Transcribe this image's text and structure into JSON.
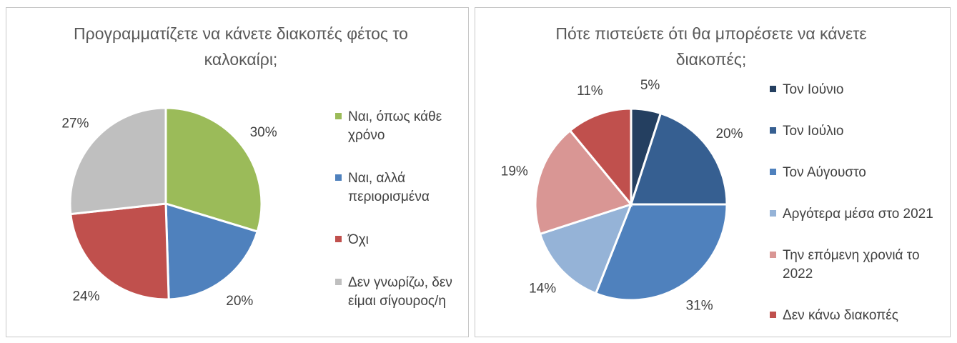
{
  "chart_data": [
    {
      "type": "pie",
      "title_lines": [
        "Προγραμματίζετε να κάνετε διακοπές φέτος το",
        "καλοκαίρι;"
      ],
      "slices": [
        {
          "label_lines": [
            "Ναι, όπως κάθε",
            "χρόνο"
          ],
          "value": 30,
          "pct_label": "30%",
          "color": "#9bbb59"
        },
        {
          "label_lines": [
            "Ναι, αλλά",
            "περιορισμένα"
          ],
          "value": 20,
          "pct_label": "20%",
          "color": "#4f81bd"
        },
        {
          "label_lines": [
            "Όχι"
          ],
          "value": 24,
          "pct_label": "24%",
          "color": "#c0504d"
        },
        {
          "label_lines": [
            "Δεν γνωρίζω, δεν",
            "είμαι σίγουρος/η"
          ],
          "value": 27,
          "pct_label": "27%",
          "color": "#bfbfbf"
        }
      ],
      "legend_position": "right"
    },
    {
      "type": "pie",
      "title_lines": [
        "Πότε πιστεύετε ότι θα μπορέσετε να κάνετε",
        "διακοπές;"
      ],
      "slices": [
        {
          "label_lines": [
            "Τον Ιούνιο"
          ],
          "value": 5,
          "pct_label": "5%",
          "color": "#243f60"
        },
        {
          "label_lines": [
            "Τον Ιούλιο"
          ],
          "value": 20,
          "pct_label": "20%",
          "color": "#365f91"
        },
        {
          "label_lines": [
            "Τον Αύγουστο"
          ],
          "value": 31,
          "pct_label": "31%",
          "color": "#4f81bd"
        },
        {
          "label_lines": [
            "Αργότερα μέσα στο 2021"
          ],
          "value": 14,
          "pct_label": "14%",
          "color": "#95b3d7"
        },
        {
          "label_lines": [
            "Την επόμενη χρονιά το",
            "2022"
          ],
          "value": 19,
          "pct_label": "19%",
          "color": "#d99694"
        },
        {
          "label_lines": [
            "Δεν κάνω διακοπές"
          ],
          "value": 11,
          "pct_label": "11%",
          "color": "#c0504d"
        }
      ],
      "legend_position": "right"
    }
  ]
}
